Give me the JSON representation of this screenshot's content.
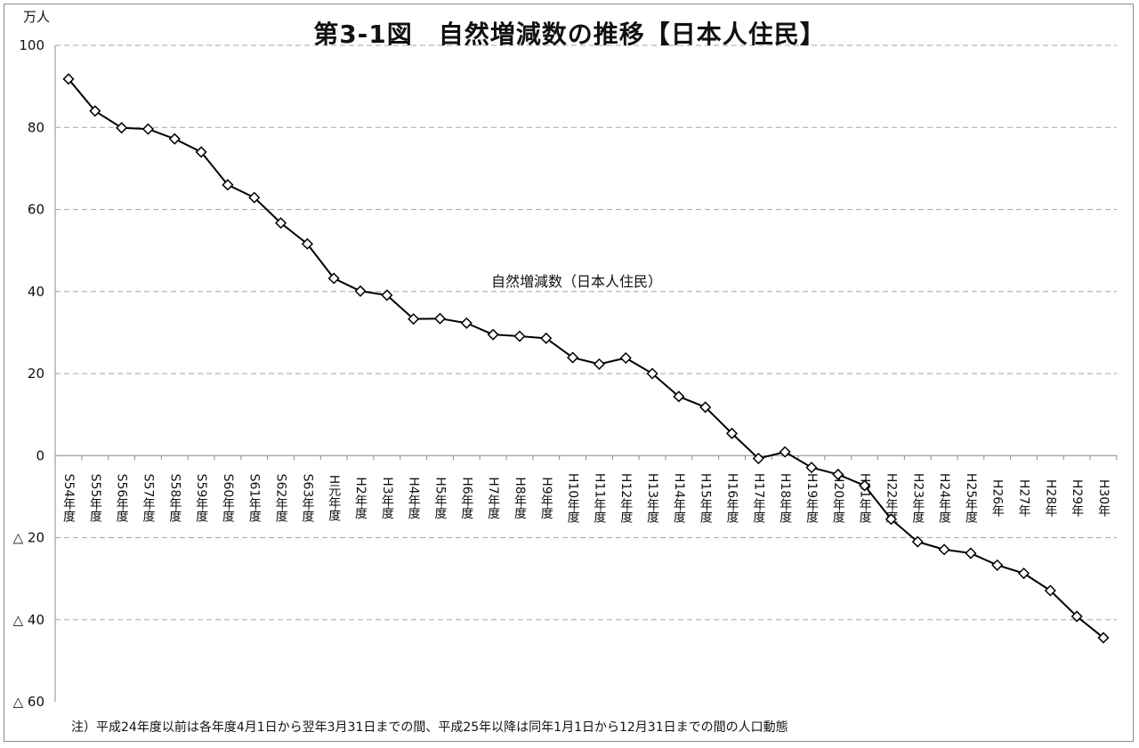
{
  "chart_data": {
    "type": "line",
    "title": "第3-1図　自然増減数の推移【日本人住民】",
    "ylabel": "万人",
    "ylim": [
      -60,
      100
    ],
    "yticks": [
      {
        "value": 100,
        "label": "100"
      },
      {
        "value": 80,
        "label": "80"
      },
      {
        "value": 60,
        "label": "60"
      },
      {
        "value": 40,
        "label": "40"
      },
      {
        "value": 20,
        "label": "20"
      },
      {
        "value": 0,
        "label": "0"
      },
      {
        "value": -20,
        "label": "△ 20"
      },
      {
        "value": -40,
        "label": "△ 40"
      },
      {
        "value": -60,
        "label": "△ 60"
      }
    ],
    "grid": true,
    "categories": [
      "S54年度",
      "S55年度",
      "S56年度",
      "S57年度",
      "S58年度",
      "S59年度",
      "S60年度",
      "S61年度",
      "S62年度",
      "S63年度",
      "H元年度",
      "H2年度",
      "H3年度",
      "H4年度",
      "H5年度",
      "H6年度",
      "H7年度",
      "H8年度",
      "H9年度",
      "H10年度",
      "H11年度",
      "H12年度",
      "H13年度",
      "H14年度",
      "H15年度",
      "H16年度",
      "H17年度",
      "H18年度",
      "H19年度",
      "H20年度",
      "H21年度",
      "H22年度",
      "H23年度",
      "H24年度",
      "H25年度",
      "H26年",
      "H27年",
      "H28年",
      "H29年",
      "H30年"
    ],
    "series": [
      {
        "name": "自然増減数（日本人住民）",
        "values": [
          91.8,
          84.0,
          79.9,
          79.6,
          77.2,
          74.0,
          66.0,
          62.9,
          56.7,
          51.6,
          43.2,
          40.1,
          39.1,
          33.3,
          33.4,
          32.3,
          29.5,
          29.1,
          28.6,
          23.9,
          22.3,
          23.8,
          20.0,
          14.4,
          11.8,
          5.4,
          -0.7,
          0.9,
          -2.9,
          -4.6,
          -7.3,
          -15.5,
          -21.0,
          -22.9,
          -23.8,
          -26.7,
          -28.7,
          -32.9,
          -39.2,
          -44.4
        ],
        "color": "#000000",
        "marker": "diamond"
      }
    ]
  },
  "footnote": "注）平成24年度以前は各年度4月1日から翌年3月31日までの間、平成25年以降は同年1月1日から12月31日までの間の人口動態"
}
